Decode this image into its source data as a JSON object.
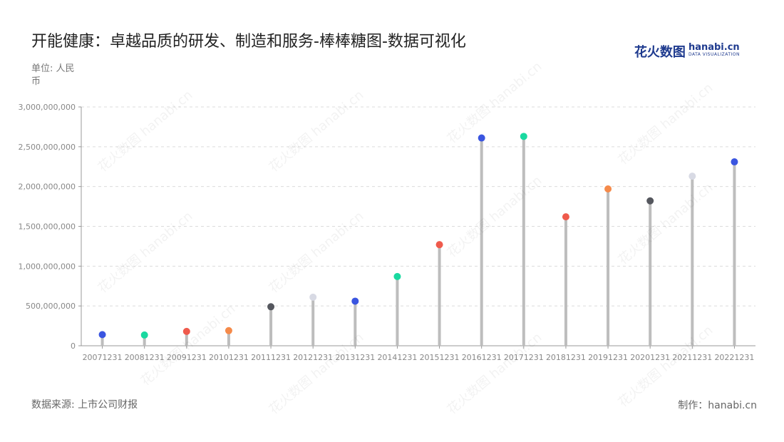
{
  "header": {
    "title": "开能健康：卓越品质的研发、制造和服务-棒棒糖图-数据可视化",
    "unit": "单位: 人民币"
  },
  "logo": {
    "cn": "花火数图",
    "en": "hanabi.cn",
    "tagline": "DATA VISUALIZATION"
  },
  "footer": {
    "source": "数据来源: 上市公司财报",
    "credit": "制作：hanabi.cn"
  },
  "watermark": "花火数图 hanabi.cn",
  "chart_data": {
    "type": "lollipop",
    "categories": [
      "20071231",
      "20081231",
      "20091231",
      "20101231",
      "20111231",
      "20121231",
      "20131231",
      "20141231",
      "20151231",
      "20161231",
      "20171231",
      "20181231",
      "20191231",
      "20201231",
      "20211231",
      "20221231"
    ],
    "values": [
      140000000,
      135000000,
      180000000,
      190000000,
      490000000,
      610000000,
      560000000,
      870000000,
      1270000000,
      2610000000,
      2630000000,
      1620000000,
      1970000000,
      1820000000,
      2130000000,
      2310000000
    ],
    "colors": [
      "#3a55e0",
      "#19d9a0",
      "#ef5a4c",
      "#f58a4a",
      "#55575e",
      "#d8dae4",
      "#3a55e0",
      "#19d9a0",
      "#ef5a4c",
      "#3a55e0",
      "#19d9a0",
      "#ef5a4c",
      "#f58a4a",
      "#55575e",
      "#d8dae4",
      "#3a55e0"
    ],
    "stick_color": "#bdbdbd",
    "ylim": [
      0,
      3000000000
    ],
    "yticks": [
      0,
      500000000,
      1000000000,
      1500000000,
      2000000000,
      2500000000,
      3000000000
    ],
    "ytick_labels": [
      "0",
      "500,000,000",
      "1,000,000,000",
      "1,500,000,000",
      "2,000,000,000",
      "2,500,000,000",
      "3,000,000,000"
    ],
    "grid": true
  }
}
